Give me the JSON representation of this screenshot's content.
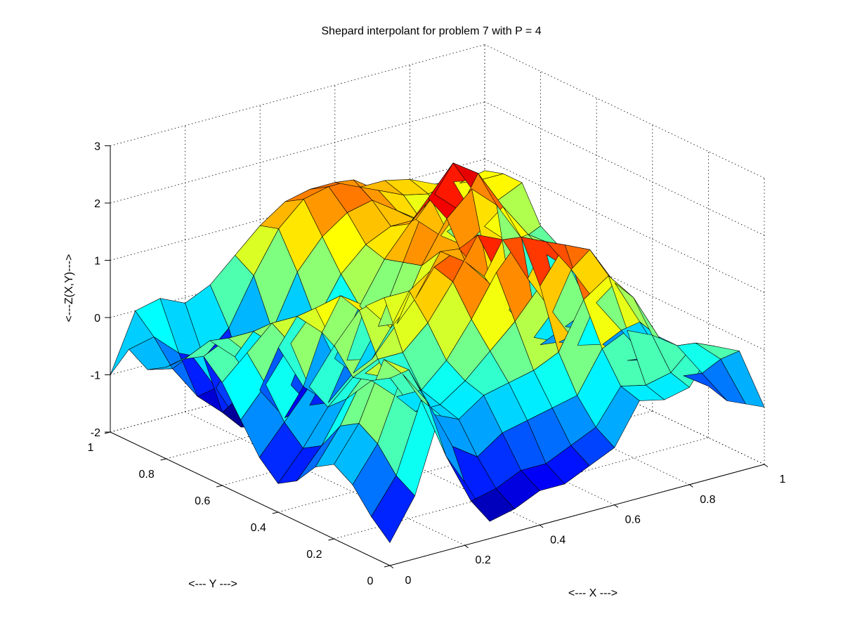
{
  "chart_data": {
    "type": "surface",
    "title": "Shepard interpolant for problem 7 with P = 4",
    "xlabel": "<--- X --->",
    "ylabel": "<--- Y --->",
    "zlabel": "<---Z(X,Y)--->",
    "xlim": [
      0,
      1
    ],
    "ylim": [
      0,
      1
    ],
    "zlim": [
      -2,
      3
    ],
    "x_ticks": [
      "0",
      "0.2",
      "0.4",
      "0.6",
      "0.8",
      "1"
    ],
    "y_ticks": [
      "0",
      "0.2",
      "0.4",
      "0.6",
      "0.8",
      "1"
    ],
    "z_ticks": [
      "-2",
      "-1",
      "0",
      "1",
      "2",
      "3"
    ],
    "grid": true,
    "colormap": "jet",
    "x": [
      0,
      0.0667,
      0.1333,
      0.2,
      0.2667,
      0.3333,
      0.4,
      0.4667,
      0.5333,
      0.6,
      0.6667,
      0.7333,
      0.8,
      0.8667,
      0.9333,
      1
    ],
    "y": [
      0,
      0.0667,
      0.1333,
      0.2,
      0.2667,
      0.3333,
      0.4,
      0.4667,
      0.5333,
      0.6,
      0.6667,
      0.7333,
      0.8,
      0.8667,
      0.9333,
      1
    ],
    "z": [
      [
        -1.6,
        -0.9,
        0.4,
        -0.9,
        -1.7,
        -1.6,
        -1.4,
        -1.4,
        -1.2,
        -1.0,
        -0.3,
        -0.4,
        -0.3,
        0.3,
        0.1,
        -1.0
      ],
      [
        -1.3,
        -0.7,
        0.5,
        -0.6,
        -1.5,
        -1.4,
        -1.2,
        -1.2,
        -1.0,
        -0.8,
        -0.2,
        -0.3,
        -0.2,
        0.2,
        -0.2,
        -1.1
      ],
      [
        -0.9,
        -0.3,
        0.8,
        0.2,
        -0.7,
        -1.0,
        -0.7,
        -0.6,
        -0.5,
        -0.4,
        0.3,
        0.5,
        0.3,
        0.0,
        -0.6,
        -1.2
      ],
      [
        -0.7,
        -0.1,
        0.9,
        0.6,
        -0.3,
        -0.5,
        -0.2,
        -0.1,
        0.0,
        0.2,
        1.0,
        1.3,
        0.8,
        0.0,
        -0.8,
        -1.1
      ],
      [
        -0.9,
        -0.3,
        0.5,
        0.3,
        -0.4,
        -0.4,
        -0.1,
        0.3,
        0.7,
        1.2,
        1.8,
        1.6,
        0.9,
        0.1,
        -0.7,
        -1.0
      ],
      [
        -1.3,
        -0.8,
        -0.1,
        0.1,
        -0.3,
        -0.3,
        0.1,
        0.7,
        1.4,
        1.9,
        1.7,
        1.1,
        0.4,
        -0.2,
        -0.8,
        -1.0
      ],
      [
        -1.5,
        -1.0,
        -0.4,
        0.0,
        0.2,
        0.2,
        0.6,
        1.2,
        1.9,
        1.7,
        0.9,
        0.2,
        -0.5,
        -0.6,
        -1.0,
        -1.1
      ],
      [
        -1.2,
        -0.7,
        -0.2,
        0.4,
        0.9,
        1.0,
        1.0,
        1.3,
        1.5,
        0.9,
        0.2,
        -0.4,
        -0.6,
        -0.5,
        -0.7,
        -0.8
      ],
      [
        -0.7,
        -0.2,
        0.4,
        0.9,
        1.0,
        0.7,
        0.2,
        0.6,
        1.3,
        1.0,
        0.5,
        -0.3,
        -0.8,
        -0.6,
        -0.4,
        -0.5
      ],
      [
        -0.2,
        0.2,
        0.6,
        0.6,
        0.2,
        -0.4,
        -0.5,
        0.0,
        0.9,
        1.6,
        2.0,
        1.6,
        0.9,
        0.5,
        0.1,
        -0.2
      ],
      [
        0.1,
        0.3,
        0.3,
        -0.1,
        -0.9,
        -1.3,
        -0.9,
        -0.2,
        0.8,
        1.8,
        2.3,
        2.0,
        1.3,
        0.7,
        0.4,
        0.2
      ],
      [
        -0.1,
        0.1,
        -0.3,
        -1.0,
        -1.6,
        -1.5,
        -0.8,
        0.0,
        0.7,
        1.2,
        1.6,
        1.2,
        0.8,
        0.4,
        0.2,
        0.1
      ],
      [
        -0.4,
        -0.3,
        -1.0,
        -1.8,
        -1.9,
        -1.3,
        -0.3,
        0.4,
        0.8,
        1.0,
        1.0,
        0.6,
        0.3,
        0.0,
        0.1,
        0.3
      ],
      [
        -0.6,
        -0.7,
        -1.3,
        -1.7,
        -1.4,
        -0.5,
        0.4,
        0.9,
        1.2,
        1.3,
        1.0,
        0.7,
        0.4,
        0.6,
        0.7,
        0.9
      ],
      [
        -0.4,
        -0.3,
        -0.7,
        -0.9,
        -0.5,
        0.3,
        1.0,
        1.4,
        1.5,
        1.5,
        1.2,
        1.0,
        0.9,
        1.0,
        0.9,
        0.9
      ],
      [
        -1.0,
        0.0,
        0.1,
        -0.1,
        0.1,
        0.5,
        0.9,
        1.2,
        1.3,
        1.3,
        1.1,
        1.1,
        1.0,
        0.8,
        0.7,
        0.8
      ]
    ]
  }
}
